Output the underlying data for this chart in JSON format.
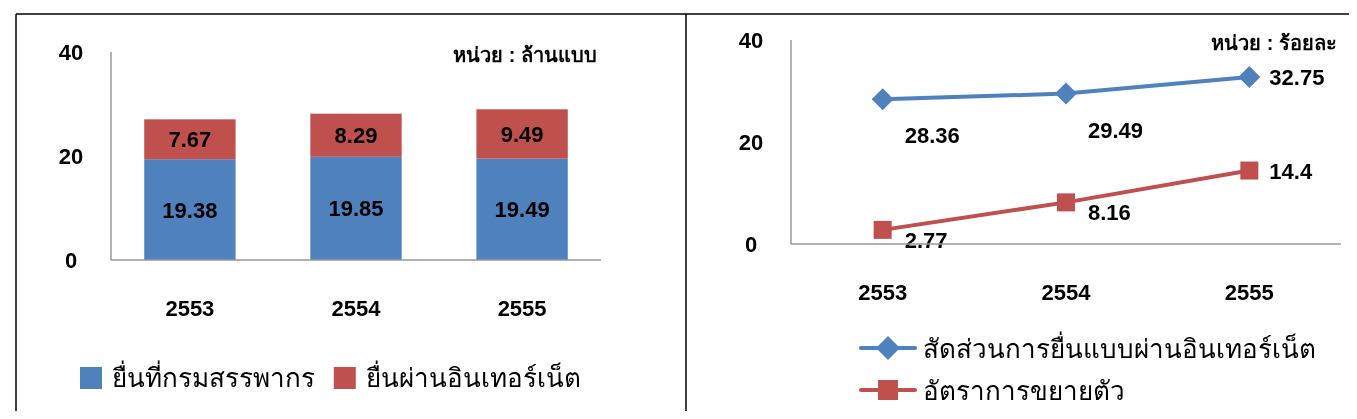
{
  "chart_data": [
    {
      "type": "bar",
      "stacked": true,
      "categories": [
        "2553",
        "2554",
        "2555"
      ],
      "series": [
        {
          "name": "ยื่นที่กรมสรรพากร",
          "color": "#4f81bd",
          "values": [
            19.38,
            19.85,
            19.49
          ]
        },
        {
          "name": "ยื่นผ่านอินเทอร์เน็ต",
          "color": "#c0504d",
          "values": [
            7.67,
            8.29,
            9.49
          ]
        }
      ],
      "ylim": [
        0,
        40
      ],
      "yticks": [
        0,
        20,
        40
      ],
      "grid": false,
      "legend": "bottom",
      "data_labels": true,
      "annotations": [
        "หน่วย : ล้านแบบ"
      ]
    },
    {
      "type": "line",
      "categories": [
        "2553",
        "2554",
        "2555"
      ],
      "series": [
        {
          "name": "สัดส่วนการยื่นแบบผ่านอินเทอร์เน็ต",
          "color": "#4f81bd",
          "marker": "diamond",
          "values": [
            28.36,
            29.49,
            32.75
          ]
        },
        {
          "name": "อัตราการขยายตัว",
          "color": "#c0504d",
          "marker": "square",
          "values": [
            2.77,
            8.16,
            14.4
          ]
        }
      ],
      "ylim": [
        0,
        40
      ],
      "yticks": [
        0,
        20,
        40
      ],
      "grid": false,
      "legend": "bottom",
      "data_labels": true,
      "annotations": [
        "หน่วย : ร้อยละ"
      ]
    }
  ]
}
